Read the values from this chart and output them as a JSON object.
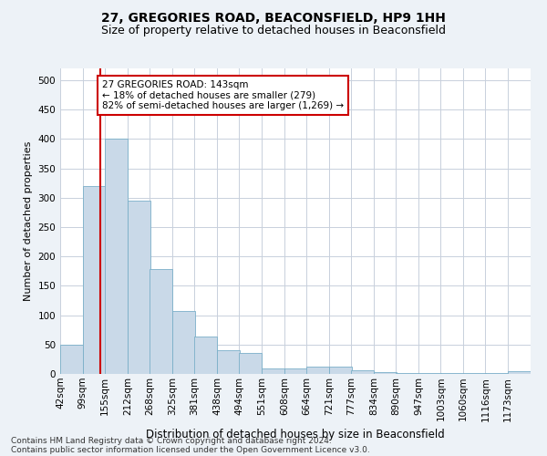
{
  "title1": "27, GREGORIES ROAD, BEACONSFIELD, HP9 1HH",
  "title2": "Size of property relative to detached houses in Beaconsfield",
  "xlabel": "Distribution of detached houses by size in Beaconsfield",
  "ylabel": "Number of detached properties",
  "footnote1": "Contains HM Land Registry data © Crown copyright and database right 2024.",
  "footnote2": "Contains public sector information licensed under the Open Government Licence v3.0.",
  "annotation_line1": "27 GREGORIES ROAD: 143sqm",
  "annotation_line2": "← 18% of detached houses are smaller (279)",
  "annotation_line3": "82% of semi-detached houses are larger (1,269) →",
  "bar_color": "#c9d9e8",
  "bar_edge_color": "#7aafc8",
  "ref_line_color": "#cc0000",
  "ref_line_x": 143,
  "categories": [
    "42sqm",
    "99sqm",
    "155sqm",
    "212sqm",
    "268sqm",
    "325sqm",
    "381sqm",
    "438sqm",
    "494sqm",
    "551sqm",
    "608sqm",
    "664sqm",
    "721sqm",
    "777sqm",
    "834sqm",
    "890sqm",
    "947sqm",
    "1003sqm",
    "1060sqm",
    "1116sqm",
    "1173sqm"
  ],
  "bin_starts": [
    42,
    99,
    155,
    212,
    268,
    325,
    381,
    438,
    494,
    551,
    608,
    664,
    721,
    777,
    834,
    890,
    947,
    1003,
    1060,
    1116,
    1173
  ],
  "bin_width": 57,
  "values": [
    50,
    320,
    400,
    295,
    178,
    107,
    63,
    40,
    35,
    10,
    10,
    13,
    12,
    6,
    3,
    2,
    1,
    1,
    1,
    1,
    4
  ],
  "ylim": [
    0,
    520
  ],
  "yticks": [
    0,
    50,
    100,
    150,
    200,
    250,
    300,
    350,
    400,
    450,
    500
  ],
  "bg_color": "#edf2f7",
  "plot_bg_color": "#ffffff",
  "grid_color": "#c8d0dc",
  "title1_fontsize": 10,
  "title2_fontsize": 9,
  "xlabel_fontsize": 8.5,
  "ylabel_fontsize": 8,
  "tick_fontsize": 7.5,
  "footnote_fontsize": 6.5,
  "annot_fontsize": 7.5
}
